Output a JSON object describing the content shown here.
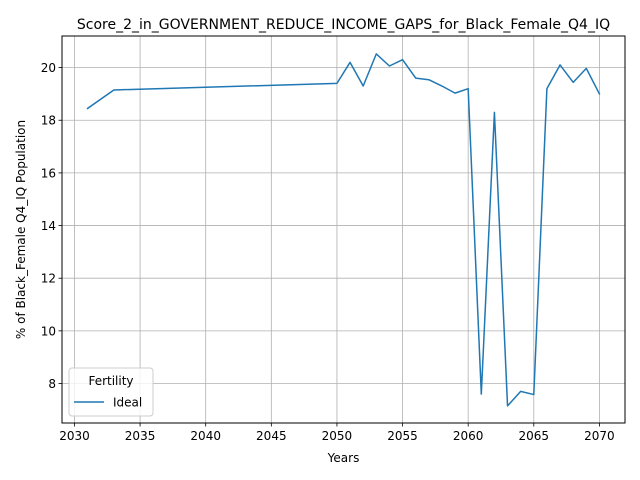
{
  "chart_data": {
    "type": "line",
    "title": "Score_2_in_GOVERNMENT_REDUCE_INCOME_GAPS_for_Black_Female_Q4_IQ",
    "xlabel": "Years",
    "ylabel": "% of Black_Female Q4_IQ Population",
    "xlim": [
      2029.05,
      2071.95
    ],
    "ylim": [
      6.5,
      21.2
    ],
    "x_ticks": [
      2030,
      2035,
      2040,
      2045,
      2050,
      2055,
      2060,
      2065,
      2070
    ],
    "y_ticks": [
      8,
      10,
      12,
      14,
      16,
      18,
      20
    ],
    "grid": true,
    "legend": {
      "title": "Fertility",
      "placement": "lower-left"
    },
    "series": [
      {
        "name": "Ideal",
        "color": "#1f77b4",
        "x": [
          2031,
          2033,
          2050,
          2051,
          2052,
          2053,
          2054,
          2055,
          2056,
          2057,
          2058,
          2059,
          2060,
          2061,
          2062,
          2063,
          2064,
          2065,
          2066,
          2067,
          2068,
          2069,
          2070
        ],
        "y": [
          18.45,
          19.15,
          19.4,
          20.2,
          19.3,
          20.52,
          20.06,
          20.3,
          19.6,
          19.54,
          19.3,
          19.03,
          19.2,
          7.6,
          18.3,
          7.15,
          7.7,
          7.58,
          19.2,
          20.1,
          19.44,
          19.97,
          19.0
        ]
      }
    ]
  }
}
